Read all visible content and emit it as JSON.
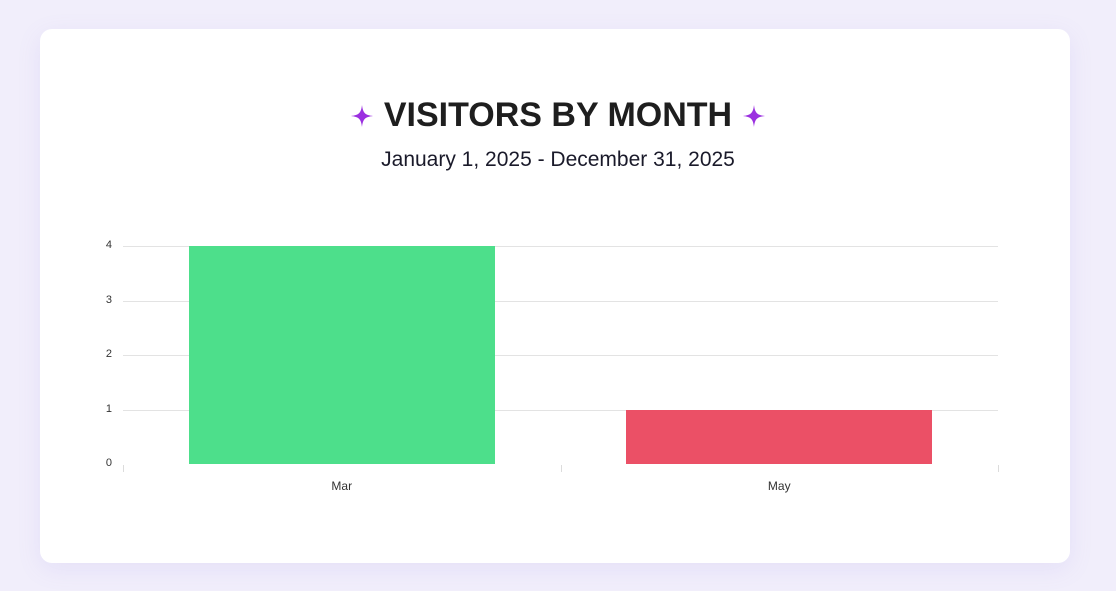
{
  "header": {
    "title": "VISITORS BY MONTH",
    "subtitle": "January 1, 2025 - December 31, 2025",
    "icon": "sparkle-icon",
    "icon_color": "#9b30e0"
  },
  "chart_data": {
    "type": "bar",
    "title": "VISITORS BY MONTH",
    "subtitle": "January 1, 2025 - December 31, 2025",
    "categories": [
      "Mar",
      "May"
    ],
    "values": [
      4,
      1
    ],
    "colors": [
      "#4ddf8b",
      "#eb5066"
    ],
    "xlabel": "",
    "ylabel": "",
    "ylim": [
      0,
      4
    ],
    "yticks": [
      "0",
      "1",
      "2",
      "3",
      "4"
    ],
    "grid": true,
    "legend": null
  }
}
